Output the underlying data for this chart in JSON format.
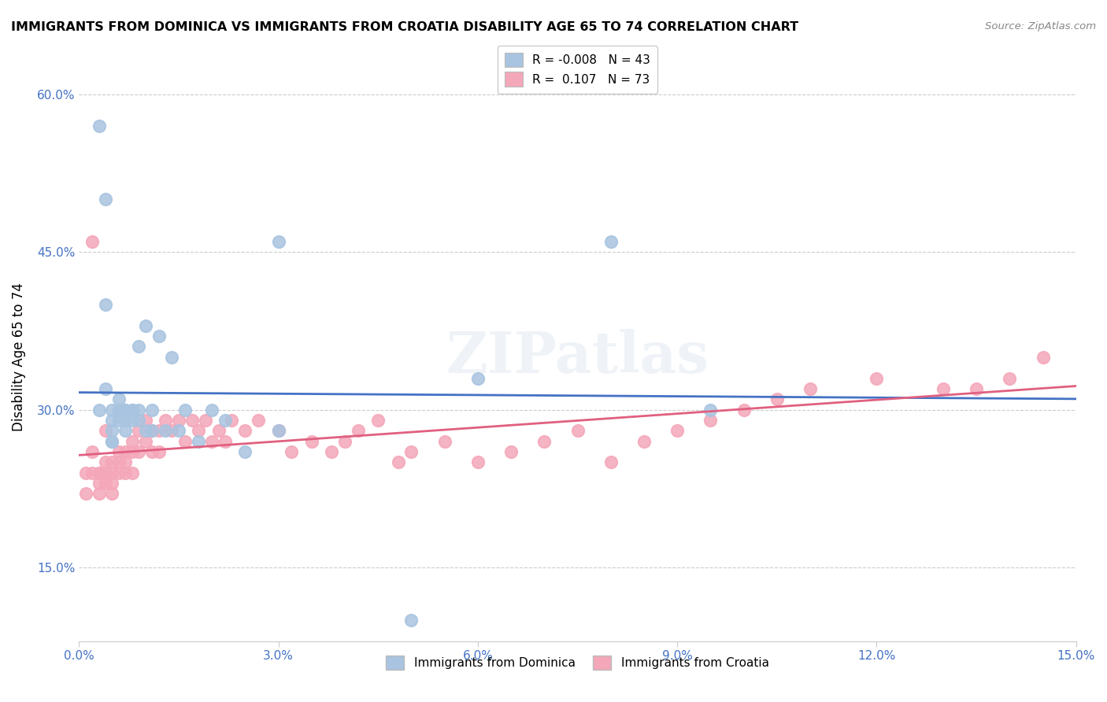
{
  "title": "IMMIGRANTS FROM DOMINICA VS IMMIGRANTS FROM CROATIA DISABILITY AGE 65 TO 74 CORRELATION CHART",
  "source": "Source: ZipAtlas.com",
  "xlabel": "",
  "ylabel": "Disability Age 65 to 74",
  "xlim": [
    0.0,
    0.15
  ],
  "ylim": [
    0.08,
    0.62
  ],
  "xticks": [
    0.0,
    0.03,
    0.06,
    0.09,
    0.12,
    0.15
  ],
  "xticklabels": [
    "0.0%",
    "3.0%",
    "6.0%",
    "9.0%",
    "12.0%",
    "15.0%"
  ],
  "yticks": [
    0.15,
    0.3,
    0.45,
    0.6
  ],
  "yticklabels": [
    "15.0%",
    "30.0%",
    "45.0%",
    "60.0%"
  ],
  "dominica_R": -0.008,
  "dominica_N": 43,
  "croatia_R": 0.107,
  "croatia_N": 73,
  "dominica_color": "#a8c4e0",
  "croatia_color": "#f4a7b9",
  "dominica_line_color": "#4472c4",
  "croatia_line_color": "#e06080",
  "watermark": "ZIPatlas",
  "dominica_x": [
    0.003,
    0.003,
    0.004,
    0.004,
    0.004,
    0.005,
    0.005,
    0.005,
    0.005,
    0.005,
    0.006,
    0.006,
    0.006,
    0.006,
    0.007,
    0.007,
    0.007,
    0.007,
    0.008,
    0.008,
    0.008,
    0.009,
    0.009,
    0.009,
    0.01,
    0.01,
    0.011,
    0.011,
    0.012,
    0.013,
    0.014,
    0.015,
    0.016,
    0.018,
    0.02,
    0.022,
    0.025,
    0.03,
    0.03,
    0.05,
    0.06,
    0.08,
    0.095
  ],
  "dominica_y": [
    0.57,
    0.3,
    0.5,
    0.4,
    0.32,
    0.3,
    0.29,
    0.28,
    0.27,
    0.27,
    0.31,
    0.3,
    0.3,
    0.29,
    0.3,
    0.3,
    0.29,
    0.28,
    0.3,
    0.3,
    0.29,
    0.36,
    0.3,
    0.29,
    0.38,
    0.28,
    0.3,
    0.28,
    0.37,
    0.28,
    0.35,
    0.28,
    0.3,
    0.27,
    0.3,
    0.29,
    0.26,
    0.46,
    0.28,
    0.1,
    0.33,
    0.46,
    0.3
  ],
  "croatia_x": [
    0.001,
    0.001,
    0.002,
    0.002,
    0.002,
    0.003,
    0.003,
    0.003,
    0.003,
    0.004,
    0.004,
    0.004,
    0.004,
    0.005,
    0.005,
    0.005,
    0.005,
    0.006,
    0.006,
    0.006,
    0.007,
    0.007,
    0.007,
    0.008,
    0.008,
    0.008,
    0.009,
    0.009,
    0.01,
    0.01,
    0.011,
    0.011,
    0.012,
    0.012,
    0.013,
    0.014,
    0.015,
    0.016,
    0.017,
    0.018,
    0.019,
    0.02,
    0.021,
    0.022,
    0.023,
    0.025,
    0.027,
    0.03,
    0.032,
    0.035,
    0.038,
    0.04,
    0.042,
    0.045,
    0.048,
    0.05,
    0.055,
    0.06,
    0.065,
    0.07,
    0.075,
    0.08,
    0.085,
    0.09,
    0.095,
    0.1,
    0.105,
    0.11,
    0.12,
    0.13,
    0.135,
    0.14,
    0.145
  ],
  "croatia_y": [
    0.24,
    0.22,
    0.46,
    0.26,
    0.24,
    0.24,
    0.24,
    0.23,
    0.22,
    0.28,
    0.25,
    0.24,
    0.23,
    0.25,
    0.24,
    0.23,
    0.22,
    0.26,
    0.25,
    0.24,
    0.26,
    0.25,
    0.24,
    0.27,
    0.26,
    0.24,
    0.28,
    0.26,
    0.29,
    0.27,
    0.28,
    0.26,
    0.28,
    0.26,
    0.29,
    0.28,
    0.29,
    0.27,
    0.29,
    0.28,
    0.29,
    0.27,
    0.28,
    0.27,
    0.29,
    0.28,
    0.29,
    0.28,
    0.26,
    0.27,
    0.26,
    0.27,
    0.28,
    0.29,
    0.25,
    0.26,
    0.27,
    0.25,
    0.26,
    0.27,
    0.28,
    0.25,
    0.27,
    0.28,
    0.29,
    0.3,
    0.31,
    0.32,
    0.33,
    0.32,
    0.32,
    0.33,
    0.35
  ]
}
